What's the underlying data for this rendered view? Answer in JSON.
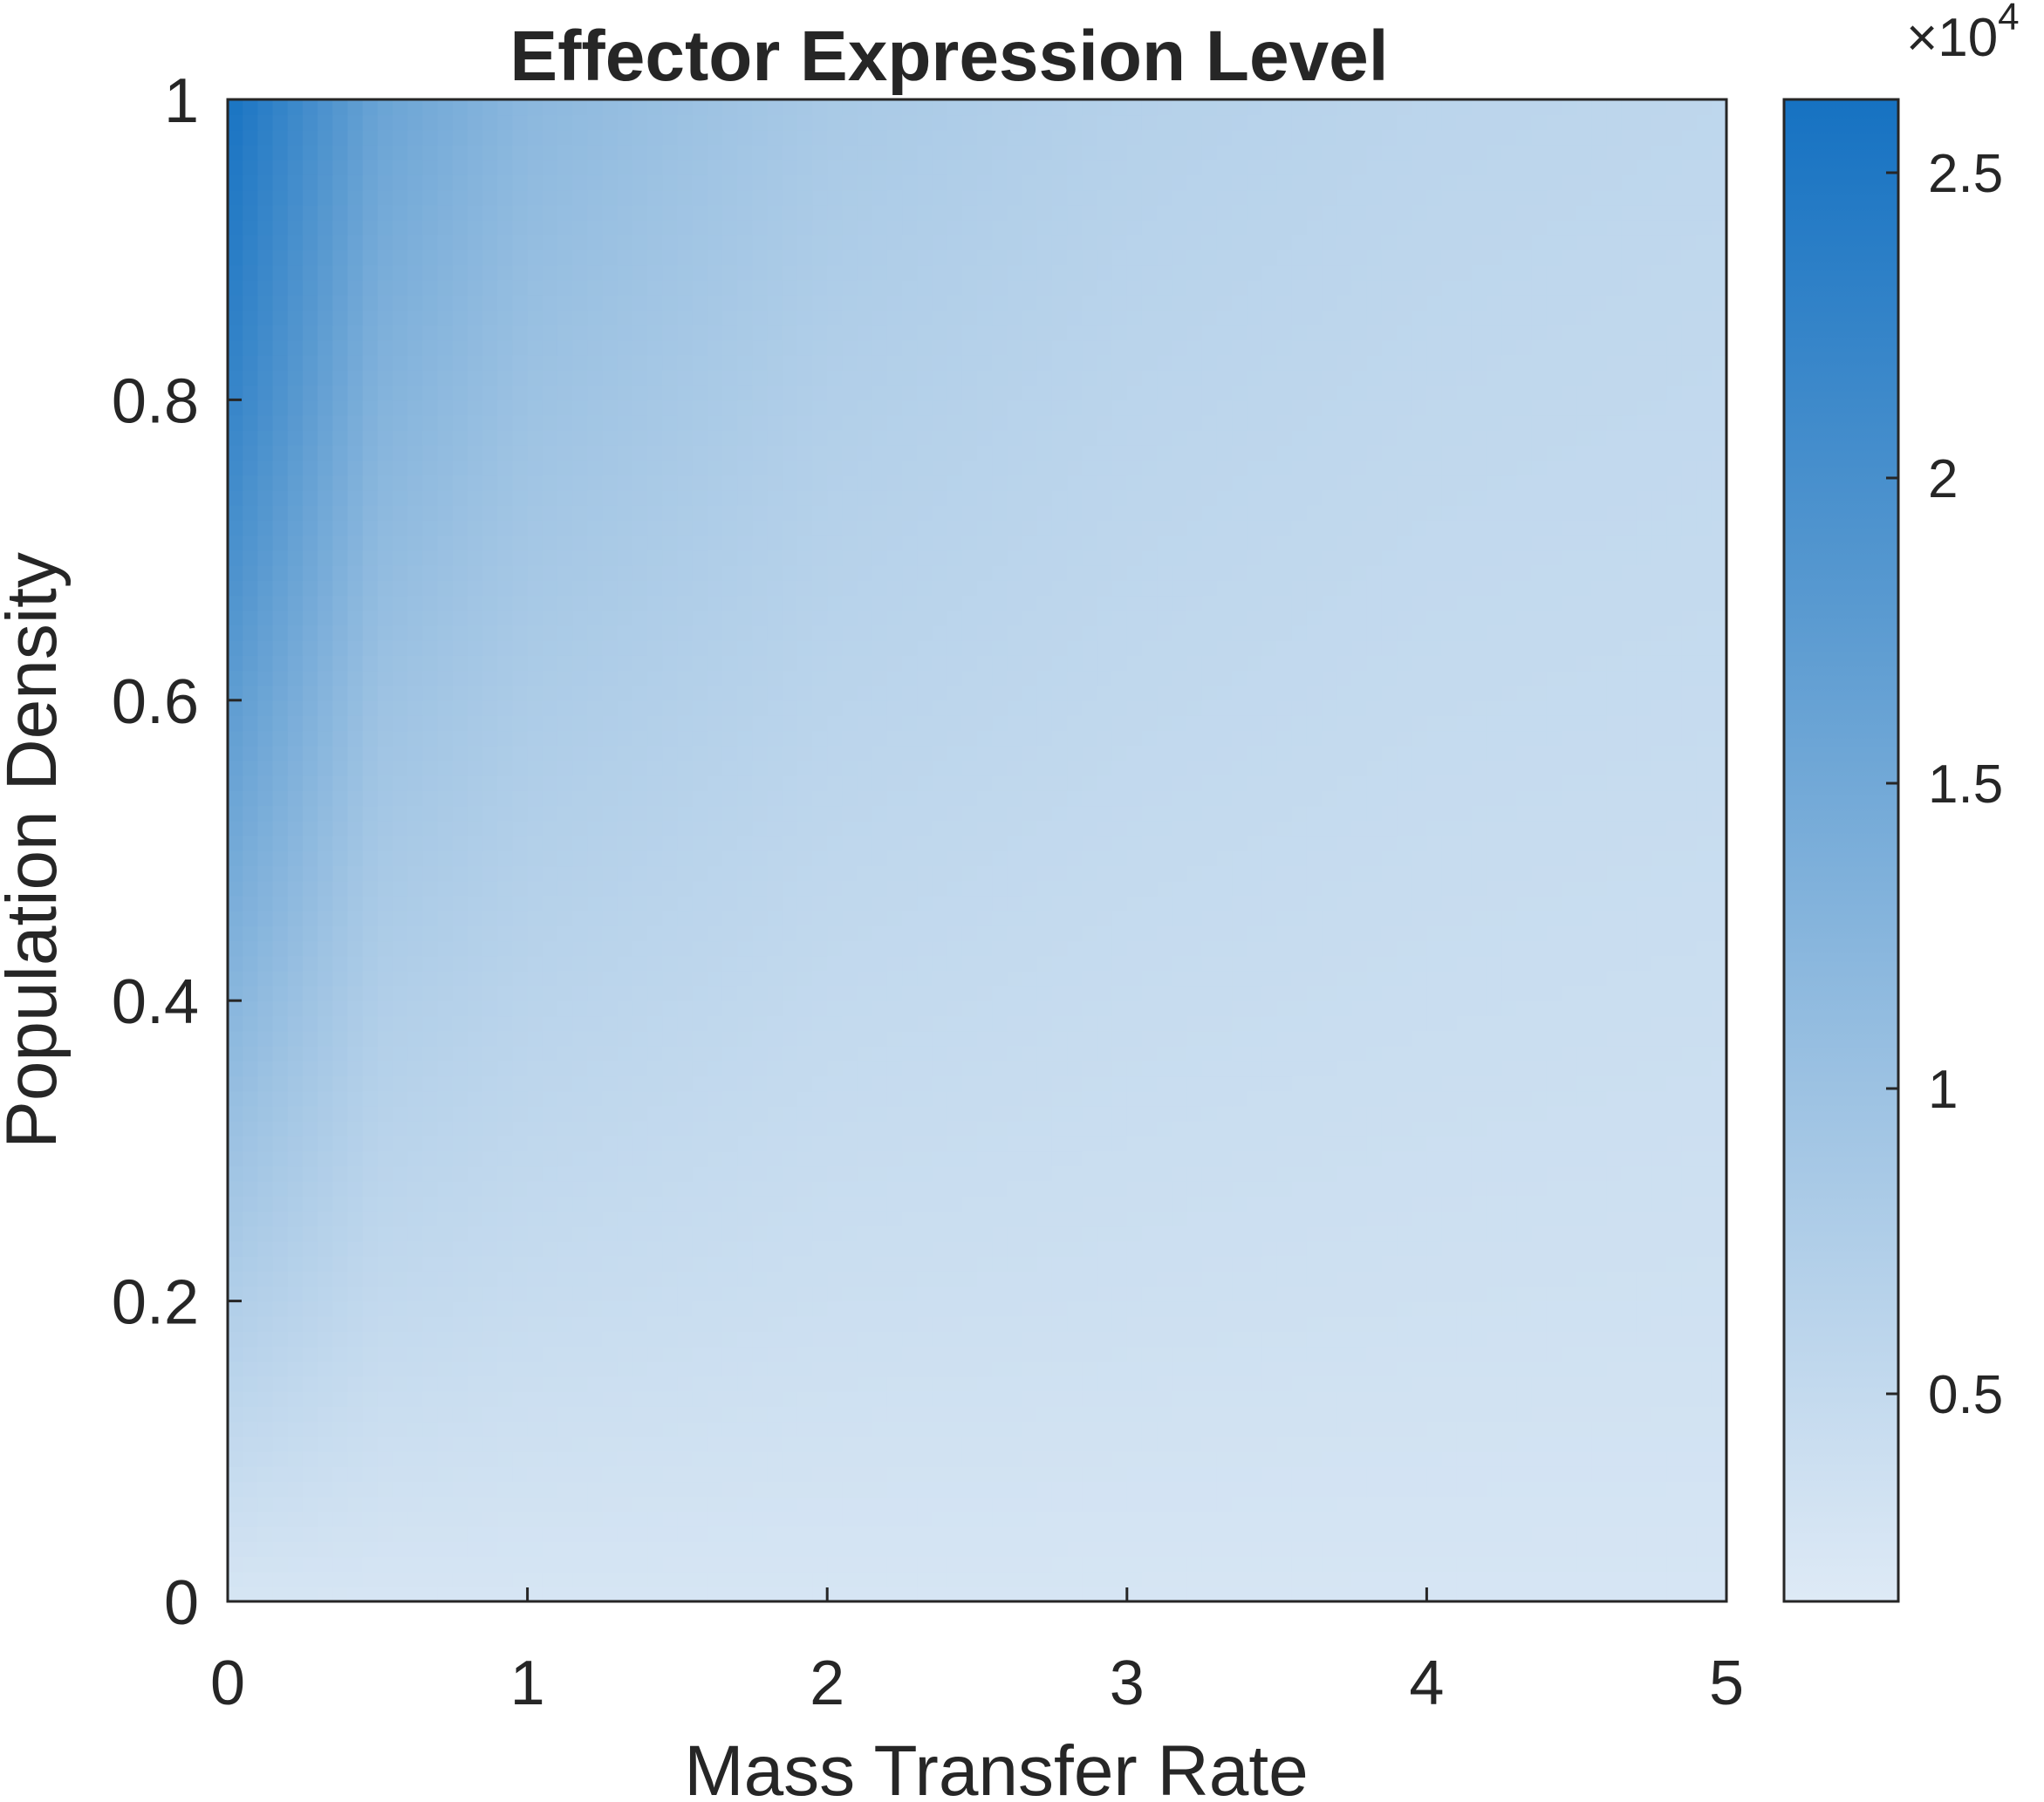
{
  "chart_data": {
    "type": "heatmap",
    "title": "Effector Expression Level",
    "xlabel": "Mass Transfer Rate",
    "ylabel": "Population Density",
    "xlim": [
      0,
      5
    ],
    "ylim": [
      0,
      1
    ],
    "x_ticks": [
      "0",
      "1",
      "2",
      "3",
      "4",
      "5"
    ],
    "y_ticks": [
      "0",
      "0.2",
      "0.4",
      "0.6",
      "0.8",
      "1"
    ],
    "grid": false,
    "colorbar": {
      "range": [
        1600,
        26200
      ],
      "ticks": [
        "0.5",
        "1",
        "1.5",
        "2",
        "2.5"
      ],
      "tick_values": [
        5000,
        10000,
        15000,
        20000,
        25000
      ],
      "exponent_label": "×10",
      "exponent": "4",
      "colormap": [
        "#deeaf6",
        "#9ec3e3",
        "#5899d0",
        "#1672c2"
      ]
    },
    "sample_values": {
      "x": [
        0,
        0.5,
        1,
        2,
        3,
        4,
        5
      ],
      "y": [
        0,
        0.2,
        0.4,
        0.6,
        0.8,
        1
      ],
      "z": [
        [
          2600,
          2600,
          2600,
          2600,
          2600,
          2600,
          2600
        ],
        [
          7500,
          5200,
          4600,
          4000,
          3800,
          3600,
          3500
        ],
        [
          12500,
          7500,
          6300,
          5100,
          4600,
          4300,
          4100
        ],
        [
          17500,
          10000,
          8000,
          6200,
          5400,
          4900,
          4700
        ],
        [
          22500,
          13000,
          10000,
          7300,
          6100,
          5500,
          5200
        ],
        [
          26000,
          16000,
          12000,
          8500,
          6900,
          6100,
          5700
        ]
      ]
    }
  }
}
